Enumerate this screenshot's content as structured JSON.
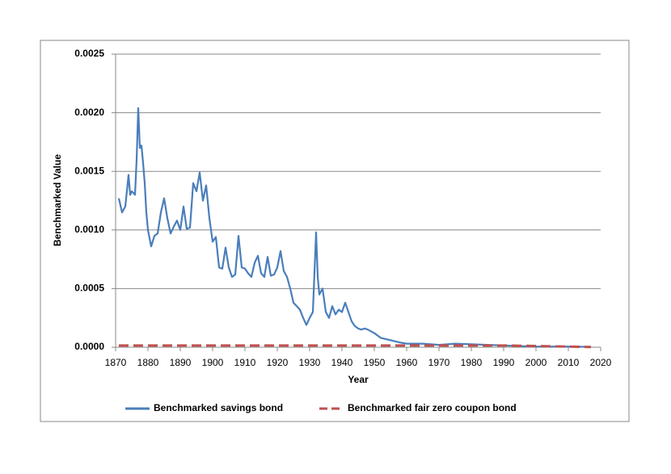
{
  "chart_data": {
    "type": "line",
    "x_label": "Year",
    "y_label": "Benchmarked Value",
    "xlim": [
      1870,
      2020
    ],
    "xticks": [
      1870,
      1880,
      1890,
      1900,
      1910,
      1920,
      1930,
      1940,
      1950,
      1960,
      1970,
      1980,
      1990,
      2000,
      2010,
      2020
    ],
    "ylim": [
      0,
      0.0025
    ],
    "yticks": [
      {
        "value": 0,
        "label": "0.0000"
      },
      {
        "value": 0.0005,
        "label": "0.0005"
      },
      {
        "value": 0.001,
        "label": "0.0010"
      },
      {
        "value": 0.0015,
        "label": "0.0015"
      },
      {
        "value": 0.002,
        "label": "0.0020"
      },
      {
        "value": 0.0025,
        "label": "0.0025"
      }
    ],
    "grid": true,
    "legend": "bottom",
    "series": [
      {
        "name": "Benchmarked savings bond",
        "color": "#4a7ebb",
        "dash": false,
        "x": [
          1871,
          1872,
          1873,
          1874,
          1874.5,
          1875,
          1876,
          1876.5,
          1877,
          1877.5,
          1878,
          1878.5,
          1879,
          1879.5,
          1880,
          1881,
          1882,
          1883,
          1884,
          1885,
          1886,
          1887,
          1888,
          1889,
          1890,
          1891,
          1892,
          1893,
          1894,
          1895,
          1896,
          1897,
          1898,
          1899,
          1900,
          1901,
          1902,
          1903,
          1904,
          1905,
          1906,
          1907,
          1908,
          1909,
          1910,
          1911,
          1912,
          1913,
          1914,
          1915,
          1916,
          1917,
          1918,
          1919,
          1920,
          1921,
          1922,
          1923,
          1924,
          1925,
          1926,
          1927,
          1928,
          1929,
          1930,
          1931,
          1932,
          1932.5,
          1933,
          1934,
          1935,
          1936,
          1937,
          1938,
          1939,
          1940,
          1941,
          1942,
          1943,
          1944,
          1945,
          1946,
          1947,
          1948,
          1950,
          1952,
          1955,
          1958,
          1960,
          1965,
          1970,
          1975,
          1980,
          1985,
          1990,
          1995,
          2000,
          2005,
          2010,
          2017
        ],
        "values": [
          0.00127,
          0.00115,
          0.0012,
          0.00147,
          0.0013,
          0.00133,
          0.0013,
          0.0016,
          0.00204,
          0.0017,
          0.00172,
          0.00157,
          0.0014,
          0.00115,
          0.001,
          0.00086,
          0.00095,
          0.00097,
          0.00115,
          0.00127,
          0.0011,
          0.00097,
          0.00103,
          0.00108,
          0.001,
          0.0012,
          0.00101,
          0.00102,
          0.0014,
          0.00133,
          0.00149,
          0.00125,
          0.00138,
          0.0011,
          0.0009,
          0.00094,
          0.00068,
          0.00067,
          0.00085,
          0.00068,
          0.0006,
          0.00062,
          0.00095,
          0.00068,
          0.00067,
          0.00063,
          0.0006,
          0.00072,
          0.00078,
          0.00063,
          0.0006,
          0.00077,
          0.00061,
          0.00062,
          0.00068,
          0.00082,
          0.00065,
          0.0006,
          0.0005,
          0.00038,
          0.00035,
          0.00032,
          0.00025,
          0.00019,
          0.00025,
          0.0003,
          0.00098,
          0.0006,
          0.00045,
          0.0005,
          0.0003,
          0.00025,
          0.00035,
          0.00028,
          0.00032,
          0.0003,
          0.00038,
          0.0003,
          0.00022,
          0.00018,
          0.00016,
          0.00015,
          0.00016,
          0.00015,
          0.00012,
          8e-05,
          6e-05,
          4e-05,
          3e-05,
          3e-05,
          2e-05,
          3e-05,
          2.5e-05,
          2e-05,
          1.5e-05,
          1e-05,
          5e-06,
          5e-06,
          5e-06,
          3e-06
        ]
      },
      {
        "name": "Benchmarked fair zero coupon bond",
        "color": "#c0504d",
        "dash": true,
        "x": [
          1871,
          1990,
          2017
        ],
        "values": [
          1.5e-05,
          1.5e-05,
          2e-06
        ]
      }
    ]
  }
}
